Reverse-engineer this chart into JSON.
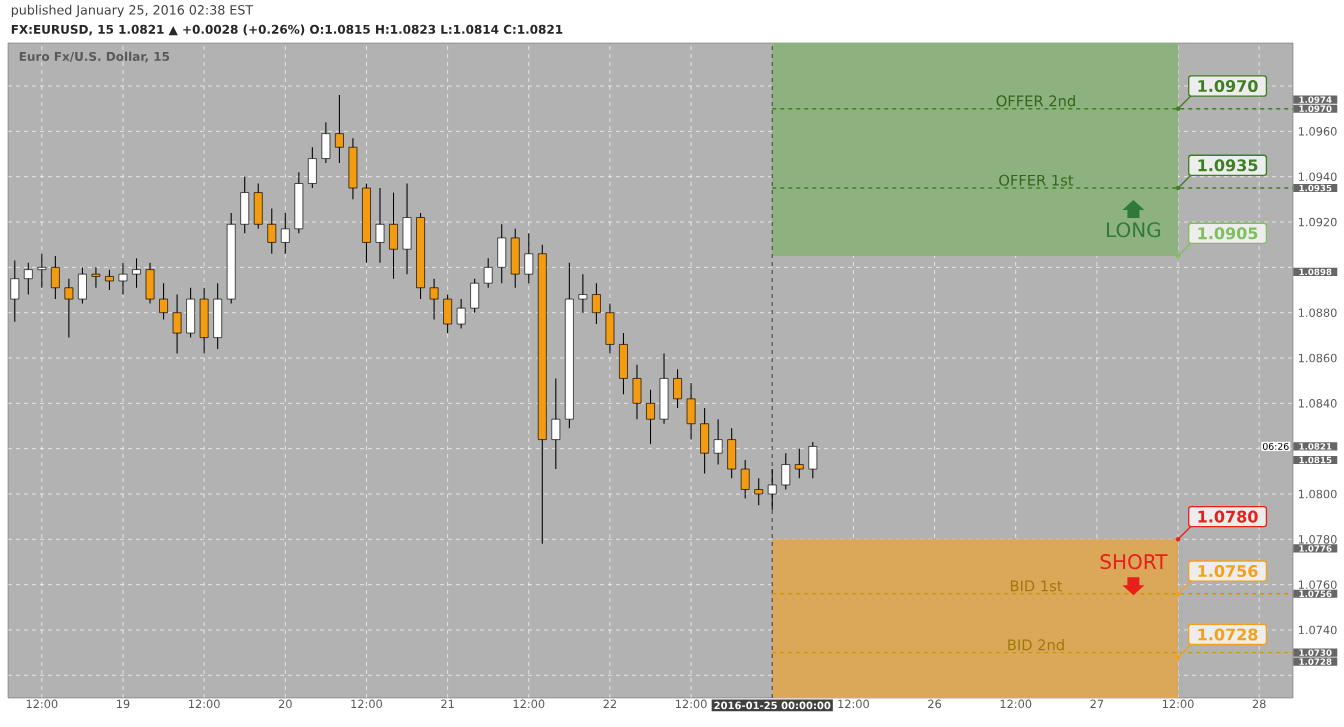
{
  "chart_data": {
    "type": "candlestick",
    "title": "published January 25, 2016 02:38 EST",
    "subtitle": "FX:EURUSD, 15 1.0821 ▲ +0.0028 (+0.26%) O:1.0815 H:1.0823 L:1.0814 C:1.0821",
    "categories": [
      null,
      null,
      "12:00",
      null,
      null,
      null,
      null,
      null,
      "19",
      null,
      null,
      null,
      null,
      null,
      "12:00",
      null,
      null,
      null,
      null,
      null,
      "20",
      null,
      null,
      null,
      null,
      null,
      "12:00",
      null,
      null,
      null,
      null,
      null,
      "21",
      null,
      null,
      null,
      null,
      null,
      "12:00",
      null,
      null,
      null,
      null,
      null,
      "22",
      null,
      null,
      null,
      null,
      null,
      "12:00",
      null,
      null,
      null,
      null,
      null,
      "2016-01-25 00:00:00",
      null,
      null,
      null,
      null,
      null,
      "12:00",
      null,
      null,
      null,
      null,
      null,
      "26",
      null,
      null,
      null,
      null,
      null,
      "12:00",
      null,
      null,
      null,
      null,
      null,
      "27",
      null,
      null,
      null,
      null,
      null,
      "12:00",
      null,
      null,
      null,
      null,
      null,
      "28",
      null,
      null
    ],
    "ohlc": [
      [
        1.0886,
        1.0903,
        1.0876,
        1.0895
      ],
      [
        1.0895,
        1.0902,
        1.0888,
        1.0899
      ],
      [
        1.0899,
        1.0906,
        1.0891,
        1.09
      ],
      [
        1.09,
        1.0905,
        1.0886,
        1.0891
      ],
      [
        1.0891,
        1.0895,
        1.0869,
        1.0886
      ],
      [
        1.0886,
        1.09,
        1.0884,
        1.0897
      ],
      [
        1.0897,
        1.09,
        1.0891,
        1.0896
      ],
      [
        1.0896,
        1.0899,
        1.089,
        1.0894
      ],
      [
        1.0894,
        1.0902,
        1.0888,
        1.0897
      ],
      [
        1.0897,
        1.0904,
        1.0891,
        1.0899
      ],
      [
        1.0899,
        1.0902,
        1.0884,
        1.0886
      ],
      [
        1.0886,
        1.0893,
        1.0877,
        1.088
      ],
      [
        1.088,
        1.0888,
        1.0862,
        1.0871
      ],
      [
        1.0871,
        1.0891,
        1.0869,
        1.0886
      ],
      [
        1.0886,
        1.0891,
        1.0862,
        1.0869
      ],
      [
        1.0869,
        1.0893,
        1.0864,
        1.0886
      ],
      [
        1.0886,
        1.0924,
        1.0884,
        1.0919
      ],
      [
        1.0919,
        1.094,
        1.0915,
        1.0933
      ],
      [
        1.0933,
        1.0937,
        1.0917,
        1.0919
      ],
      [
        1.0919,
        1.0926,
        1.0906,
        1.0911
      ],
      [
        1.0911,
        1.0924,
        1.0906,
        1.0917
      ],
      [
        1.0917,
        1.0942,
        1.0915,
        1.0937
      ],
      [
        1.0937,
        1.0953,
        1.0935,
        1.0948
      ],
      [
        1.0948,
        1.0964,
        1.0946,
        1.0959
      ],
      [
        1.0959,
        1.0976,
        1.0946,
        1.0953
      ],
      [
        1.0953,
        1.0957,
        1.093,
        1.0935
      ],
      [
        1.0935,
        1.0937,
        1.0902,
        1.0911
      ],
      [
        1.0911,
        1.0935,
        1.0902,
        1.0919
      ],
      [
        1.0919,
        1.0933,
        1.0895,
        1.0908
      ],
      [
        1.0908,
        1.0937,
        1.0897,
        1.0922
      ],
      [
        1.0922,
        1.0924,
        1.0886,
        1.0891
      ],
      [
        1.0891,
        1.0895,
        1.0877,
        1.0886
      ],
      [
        1.0886,
        1.0888,
        1.0871,
        1.0875
      ],
      [
        1.0875,
        1.0886,
        1.0873,
        1.0882
      ],
      [
        1.0882,
        1.0895,
        1.088,
        1.0893
      ],
      [
        1.0893,
        1.0904,
        1.0891,
        1.09
      ],
      [
        1.09,
        1.0919,
        1.0893,
        1.0913
      ],
      [
        1.0913,
        1.0917,
        1.0891,
        1.0897
      ],
      [
        1.0897,
        1.0915,
        1.0893,
        1.0906
      ],
      [
        1.0906,
        1.091,
        1.0778,
        1.0824
      ],
      [
        1.0824,
        1.0851,
        1.0811,
        1.0833
      ],
      [
        1.0833,
        1.0902,
        1.0829,
        1.0886
      ],
      [
        1.0886,
        1.0897,
        1.088,
        1.0888
      ],
      [
        1.0888,
        1.0893,
        1.0875,
        1.088
      ],
      [
        1.088,
        1.0884,
        1.0862,
        1.0866
      ],
      [
        1.0866,
        1.0871,
        1.0844,
        1.0851
      ],
      [
        1.0851,
        1.0857,
        1.0833,
        1.084
      ],
      [
        1.084,
        1.0846,
        1.0822,
        1.0833
      ],
      [
        1.0833,
        1.0862,
        1.0831,
        1.0851
      ],
      [
        1.0851,
        1.0855,
        1.0838,
        1.0842
      ],
      [
        1.0842,
        1.0849,
        1.0824,
        1.0831
      ],
      [
        1.0831,
        1.0838,
        1.0809,
        1.0818
      ],
      [
        1.0818,
        1.0833,
        1.0813,
        1.0824
      ],
      [
        1.0824,
        1.0829,
        1.0807,
        1.0811
      ],
      [
        1.0811,
        1.0815,
        1.0798,
        1.0802
      ],
      [
        1.0802,
        1.0807,
        1.0795,
        1.08
      ],
      [
        1.08,
        1.0811,
        1.0793,
        1.0804
      ],
      [
        1.0804,
        1.0818,
        1.0802,
        1.0813
      ],
      [
        1.0813,
        1.082,
        1.0807,
        1.0811
      ],
      [
        1.0811,
        1.0823,
        1.0807,
        1.0821
      ],
      null,
      null,
      null,
      null,
      null,
      null,
      null,
      null,
      null,
      null,
      null,
      null,
      null,
      null,
      null,
      null,
      null,
      null,
      null,
      null,
      null,
      null,
      null,
      null,
      null,
      null,
      null,
      null,
      null,
      null,
      null,
      null,
      null,
      null,
      null
    ],
    "colors": [
      "#ffffff",
      "#ffffff",
      "#ffffff",
      "#f39c12",
      "#f39c12",
      "#ffffff",
      "#f39c12",
      "#f39c12",
      "#ffffff",
      "#ffffff",
      "#f39c12",
      "#f39c12",
      "#f39c12",
      "#ffffff",
      "#f39c12",
      "#ffffff",
      "#ffffff",
      "#ffffff",
      "#f39c12",
      "#f39c12",
      "#ffffff",
      "#ffffff",
      "#ffffff",
      "#ffffff",
      "#f39c12",
      "#f39c12",
      "#f39c12",
      "#ffffff",
      "#f39c12",
      "#ffffff",
      "#f39c12",
      "#f39c12",
      "#f39c12",
      "#ffffff",
      "#ffffff",
      "#ffffff",
      "#ffffff",
      "#f39c12",
      "#ffffff",
      "#f39c12",
      "#ffffff",
      "#ffffff",
      "#ffffff",
      "#f39c12",
      "#f39c12",
      "#f39c12",
      "#f39c12",
      "#f39c12",
      "#ffffff",
      "#f39c12",
      "#f39c12",
      "#f39c12",
      "#ffffff",
      "#f39c12",
      "#f39c12",
      "#f39c12",
      "#ffffff",
      "#ffffff",
      "#f39c12",
      "#ffffff",
      null,
      null,
      null,
      null,
      null,
      null,
      null,
      null,
      null,
      null,
      null,
      null,
      null,
      null,
      null,
      null,
      null,
      null,
      null,
      null,
      null,
      null,
      null,
      null,
      null,
      null,
      null,
      null,
      null,
      null,
      null,
      null,
      null,
      null,
      null
    ],
    "series": [
      {
        "type": "scatter",
        "marker": "circle",
        "color": "#3f7f23",
        "values": [
          null,
          null,
          null,
          null,
          null,
          null,
          null,
          null,
          null,
          null,
          null,
          null,
          null,
          null,
          null,
          null,
          null,
          null,
          null,
          null,
          null,
          null,
          null,
          null,
          null,
          null,
          null,
          null,
          null,
          null,
          null,
          null,
          null,
          null,
          null,
          null,
          null,
          null,
          null,
          null,
          null,
          null,
          null,
          null,
          null,
          null,
          null,
          null,
          null,
          null,
          null,
          null,
          null,
          null,
          null,
          null,
          null,
          null,
          null,
          null,
          null,
          null,
          null,
          null,
          null,
          null,
          null,
          null,
          null,
          null,
          null,
          null,
          null,
          null,
          null,
          null,
          null,
          null,
          null,
          null,
          null,
          null,
          null,
          null,
          null,
          null,
          1.097,
          null,
          null,
          null,
          null,
          null,
          null,
          null,
          null
        ],
        "value_labels": [
          null,
          null,
          null,
          null,
          null,
          null,
          null,
          null,
          null,
          null,
          null,
          null,
          null,
          null,
          null,
          null,
          null,
          null,
          null,
          null,
          null,
          null,
          null,
          null,
          null,
          null,
          null,
          null,
          null,
          null,
          null,
          null,
          null,
          null,
          null,
          null,
          null,
          null,
          null,
          null,
          null,
          null,
          null,
          null,
          null,
          null,
          null,
          null,
          null,
          null,
          null,
          null,
          null,
          null,
          null,
          null,
          null,
          null,
          null,
          null,
          null,
          null,
          null,
          null,
          null,
          null,
          null,
          null,
          null,
          null,
          null,
          null,
          null,
          null,
          null,
          null,
          null,
          null,
          null,
          null,
          null,
          null,
          null,
          null,
          null,
          null,
          "1.0970",
          null,
          null,
          null,
          null,
          null,
          null,
          null,
          null
        ]
      },
      {
        "type": "scatter",
        "marker": "circle",
        "color": "#3f7f23",
        "values": [
          null,
          null,
          null,
          null,
          null,
          null,
          null,
          null,
          null,
          null,
          null,
          null,
          null,
          null,
          null,
          null,
          null,
          null,
          null,
          null,
          null,
          null,
          null,
          null,
          null,
          null,
          null,
          null,
          null,
          null,
          null,
          null,
          null,
          null,
          null,
          null,
          null,
          null,
          null,
          null,
          null,
          null,
          null,
          null,
          null,
          null,
          null,
          null,
          null,
          null,
          null,
          null,
          null,
          null,
          null,
          null,
          null,
          null,
          null,
          null,
          null,
          null,
          null,
          null,
          null,
          null,
          null,
          null,
          null,
          null,
          null,
          null,
          null,
          null,
          null,
          null,
          null,
          null,
          null,
          null,
          null,
          null,
          null,
          null,
          null,
          null,
          1.0935,
          null,
          null,
          null,
          null,
          null,
          null,
          null,
          null
        ],
        "value_labels": [
          null,
          null,
          null,
          null,
          null,
          null,
          null,
          null,
          null,
          null,
          null,
          null,
          null,
          null,
          null,
          null,
          null,
          null,
          null,
          null,
          null,
          null,
          null,
          null,
          null,
          null,
          null,
          null,
          null,
          null,
          null,
          null,
          null,
          null,
          null,
          null,
          null,
          null,
          null,
          null,
          null,
          null,
          null,
          null,
          null,
          null,
          null,
          null,
          null,
          null,
          null,
          null,
          null,
          null,
          null,
          null,
          null,
          null,
          null,
          null,
          null,
          null,
          null,
          null,
          null,
          null,
          null,
          null,
          null,
          null,
          null,
          null,
          null,
          null,
          null,
          null,
          null,
          null,
          null,
          null,
          null,
          null,
          null,
          null,
          null,
          null,
          "1.0935",
          null,
          null,
          null,
          null,
          null,
          null,
          null,
          null
        ]
      },
      {
        "type": "scatter",
        "marker": "circle",
        "color": "#7fbf5f",
        "values": [
          null,
          null,
          null,
          null,
          null,
          null,
          null,
          null,
          null,
          null,
          null,
          null,
          null,
          null,
          null,
          null,
          null,
          null,
          null,
          null,
          null,
          null,
          null,
          null,
          null,
          null,
          null,
          null,
          null,
          null,
          null,
          null,
          null,
          null,
          null,
          null,
          null,
          null,
          null,
          null,
          null,
          null,
          null,
          null,
          null,
          null,
          null,
          null,
          null,
          null,
          null,
          null,
          null,
          null,
          null,
          null,
          null,
          null,
          null,
          null,
          null,
          null,
          null,
          null,
          null,
          null,
          null,
          null,
          null,
          null,
          null,
          null,
          null,
          null,
          null,
          null,
          null,
          null,
          null,
          null,
          null,
          null,
          null,
          null,
          null,
          null,
          1.0905,
          null,
          null,
          null,
          null,
          null,
          null,
          null,
          null
        ],
        "value_labels": [
          null,
          null,
          null,
          null,
          null,
          null,
          null,
          null,
          null,
          null,
          null,
          null,
          null,
          null,
          null,
          null,
          null,
          null,
          null,
          null,
          null,
          null,
          null,
          null,
          null,
          null,
          null,
          null,
          null,
          null,
          null,
          null,
          null,
          null,
          null,
          null,
          null,
          null,
          null,
          null,
          null,
          null,
          null,
          null,
          null,
          null,
          null,
          null,
          null,
          null,
          null,
          null,
          null,
          null,
          null,
          null,
          null,
          null,
          null,
          null,
          null,
          null,
          null,
          null,
          null,
          null,
          null,
          null,
          null,
          null,
          null,
          null,
          null,
          null,
          null,
          null,
          null,
          null,
          null,
          null,
          null,
          null,
          null,
          null,
          null,
          null,
          "1.0905",
          null,
          null,
          null,
          null,
          null,
          null,
          null,
          null
        ]
      },
      {
        "type": "scatter",
        "marker": "circle",
        "color": "#e8201a",
        "values": [
          null,
          null,
          null,
          null,
          null,
          null,
          null,
          null,
          null,
          null,
          null,
          null,
          null,
          null,
          null,
          null,
          null,
          null,
          null,
          null,
          null,
          null,
          null,
          null,
          null,
          null,
          null,
          null,
          null,
          null,
          null,
          null,
          null,
          null,
          null,
          null,
          null,
          null,
          null,
          null,
          null,
          null,
          null,
          null,
          null,
          null,
          null,
          null,
          null,
          null,
          null,
          null,
          null,
          null,
          null,
          null,
          null,
          null,
          null,
          null,
          null,
          null,
          null,
          null,
          null,
          null,
          null,
          null,
          null,
          null,
          null,
          null,
          null,
          null,
          null,
          null,
          null,
          null,
          null,
          null,
          null,
          null,
          null,
          null,
          null,
          null,
          1.078,
          null,
          null,
          null,
          null,
          null,
          null,
          null,
          null
        ],
        "value_labels": [
          null,
          null,
          null,
          null,
          null,
          null,
          null,
          null,
          null,
          null,
          null,
          null,
          null,
          null,
          null,
          null,
          null,
          null,
          null,
          null,
          null,
          null,
          null,
          null,
          null,
          null,
          null,
          null,
          null,
          null,
          null,
          null,
          null,
          null,
          null,
          null,
          null,
          null,
          null,
          null,
          null,
          null,
          null,
          null,
          null,
          null,
          null,
          null,
          null,
          null,
          null,
          null,
          null,
          null,
          null,
          null,
          null,
          null,
          null,
          null,
          null,
          null,
          null,
          null,
          null,
          null,
          null,
          null,
          null,
          null,
          null,
          null,
          null,
          null,
          null,
          null,
          null,
          null,
          null,
          null,
          null,
          null,
          null,
          null,
          null,
          null,
          "1.0780",
          null,
          null,
          null,
          null,
          null,
          null,
          null,
          null
        ]
      },
      {
        "type": "scatter",
        "marker": "circle",
        "color": "#f5a01a",
        "values": [
          null,
          null,
          null,
          null,
          null,
          null,
          null,
          null,
          null,
          null,
          null,
          null,
          null,
          null,
          null,
          null,
          null,
          null,
          null,
          null,
          null,
          null,
          null,
          null,
          null,
          null,
          null,
          null,
          null,
          null,
          null,
          null,
          null,
          null,
          null,
          null,
          null,
          null,
          null,
          null,
          null,
          null,
          null,
          null,
          null,
          null,
          null,
          null,
          null,
          null,
          null,
          null,
          null,
          null,
          null,
          null,
          null,
          null,
          null,
          null,
          null,
          null,
          null,
          null,
          null,
          null,
          null,
          null,
          null,
          null,
          null,
          null,
          null,
          null,
          null,
          null,
          null,
          null,
          null,
          null,
          null,
          null,
          null,
          null,
          null,
          null,
          1.0756,
          null,
          null,
          null,
          null,
          null,
          null,
          null,
          null
        ],
        "value_labels": [
          null,
          null,
          null,
          null,
          null,
          null,
          null,
          null,
          null,
          null,
          null,
          null,
          null,
          null,
          null,
          null,
          null,
          null,
          null,
          null,
          null,
          null,
          null,
          null,
          null,
          null,
          null,
          null,
          null,
          null,
          null,
          null,
          null,
          null,
          null,
          null,
          null,
          null,
          null,
          null,
          null,
          null,
          null,
          null,
          null,
          null,
          null,
          null,
          null,
          null,
          null,
          null,
          null,
          null,
          null,
          null,
          null,
          null,
          null,
          null,
          null,
          null,
          null,
          null,
          null,
          null,
          null,
          null,
          null,
          null,
          null,
          null,
          null,
          null,
          null,
          null,
          null,
          null,
          null,
          null,
          null,
          null,
          null,
          null,
          null,
          null,
          "1.0756",
          null,
          null,
          null,
          null,
          null,
          null,
          null,
          null
        ]
      },
      {
        "type": "scatter",
        "marker": "circle",
        "color": "#f5a01a",
        "values": [
          null,
          null,
          null,
          null,
          null,
          null,
          null,
          null,
          null,
          null,
          null,
          null,
          null,
          null,
          null,
          null,
          null,
          null,
          null,
          null,
          null,
          null,
          null,
          null,
          null,
          null,
          null,
          null,
          null,
          null,
          null,
          null,
          null,
          null,
          null,
          null,
          null,
          null,
          null,
          null,
          null,
          null,
          null,
          null,
          null,
          null,
          null,
          null,
          null,
          null,
          null,
          null,
          null,
          null,
          null,
          null,
          null,
          null,
          null,
          null,
          null,
          null,
          null,
          null,
          null,
          null,
          null,
          null,
          null,
          null,
          null,
          null,
          null,
          null,
          null,
          null,
          null,
          null,
          null,
          null,
          null,
          null,
          null,
          null,
          null,
          null,
          1.0728,
          null,
          null,
          null,
          null,
          null,
          null,
          null,
          null
        ],
        "value_labels": [
          null,
          null,
          null,
          null,
          null,
          null,
          null,
          null,
          null,
          null,
          null,
          null,
          null,
          null,
          null,
          null,
          null,
          null,
          null,
          null,
          null,
          null,
          null,
          null,
          null,
          null,
          null,
          null,
          null,
          null,
          null,
          null,
          null,
          null,
          null,
          null,
          null,
          null,
          null,
          null,
          null,
          null,
          null,
          null,
          null,
          null,
          null,
          null,
          null,
          null,
          null,
          null,
          null,
          null,
          null,
          null,
          null,
          null,
          null,
          null,
          null,
          null,
          null,
          null,
          null,
          null,
          null,
          null,
          null,
          null,
          null,
          null,
          null,
          null,
          null,
          null,
          null,
          null,
          null,
          null,
          null,
          null,
          null,
          null,
          null,
          null,
          "1.0728",
          null,
          null,
          null,
          null,
          null,
          null,
          null,
          null
        ]
      }
    ],
    "ylim": [
      1.071,
      1.0999
    ],
    "yticks": [
      {
        "value": 1.072,
        "label": null
      },
      {
        "value": 1.074,
        "label": "1.0740"
      },
      {
        "value": 1.076,
        "label": "1.0760"
      },
      {
        "value": 1.078,
        "label": "1.0780"
      },
      {
        "value": 1.08,
        "label": "1.0800"
      },
      {
        "value": 1.082,
        "label": null
      },
      {
        "value": 1.084,
        "label": "1.0840"
      },
      {
        "value": 1.086,
        "label": "1.0860"
      },
      {
        "value": 1.088,
        "label": "1.0880"
      },
      {
        "value": 1.09,
        "label": null
      },
      {
        "value": 1.092,
        "label": "1.0920"
      },
      {
        "value": 1.094,
        "label": "1.0940"
      },
      {
        "value": 1.096,
        "label": "1.0960"
      },
      {
        "value": 1.098,
        "label": null
      }
    ],
    "y2lim": [
      1.071,
      1.0999
    ],
    "y2ticks": [
      1.0974,
      {
        "value": 1.097,
        "label": "1.0970"
      },
      1.0935,
      1.0898,
      1.0821,
      1.0815,
      1.0776,
      1.0756,
      {
        "value": 1.073,
        "label": "1.0730"
      },
      1.0728
    ],
    "grid": true,
    "ref_lines": [
      {
        "axis": "x",
        "value": "2016-01-25 00:00:00",
        "color": "#555555",
        "line_style": "dashed"
      },
      {
        "axis": "y",
        "value": 1.097,
        "label": "OFFER 2nd",
        "color": "#3f7f23",
        "line_style": "dashed"
      },
      {
        "axis": "y",
        "value": 1.0935,
        "label": "OFFER 1st",
        "color": "#3f7f23",
        "line_style": "dashed"
      },
      {
        "axis": "y",
        "value": 1.0756,
        "label": "BID 1st",
        "color": "#c8960c",
        "line_style": "dashed"
      },
      {
        "axis": "y",
        "value": 1.073,
        "label": "BID 2nd",
        "color": "#c8960c",
        "line_style": "dashed"
      }
    ],
    "bands": [
      {
        "axis": "y",
        "from": 1.0905,
        "to": 1.0999,
        "label": "LONG",
        "color": "#8db27f"
      },
      {
        "axis": "y",
        "from": 1.071,
        "to": 1.078,
        "label": "SHORT",
        "color": "#dba85a"
      }
    ],
    "annotations": [
      "Euro Fx/U.S. Dollar, 15",
      "06:26"
    ]
  }
}
